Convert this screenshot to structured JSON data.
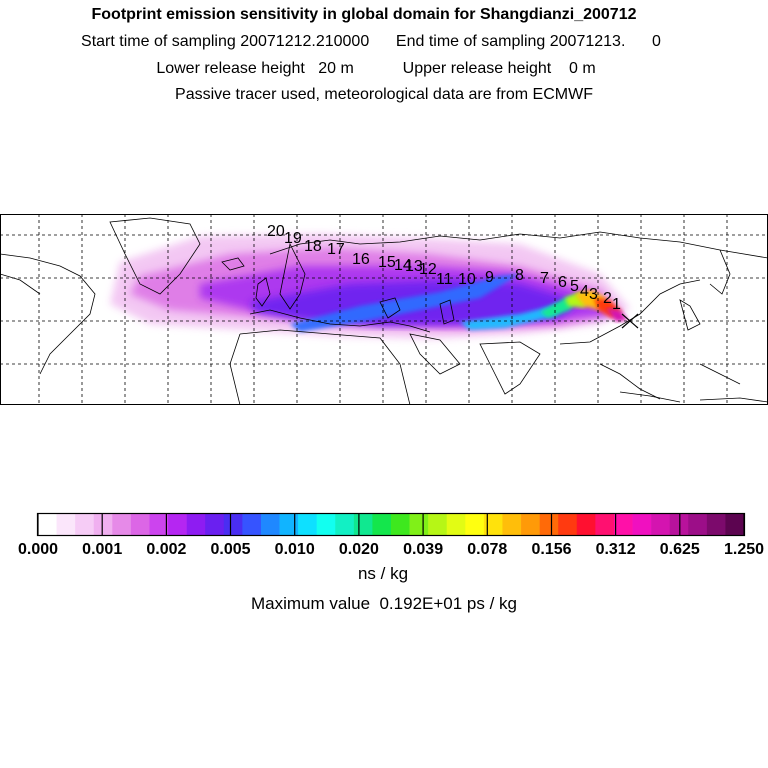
{
  "header": {
    "title": "Footprint emission sensitivity in global domain for Shangdianzi_200712",
    "line2": "Start time of sampling 20071212.210000      End time of sampling 20071213.      0",
    "line3": "Lower release height   20 m           Upper release height    0 m",
    "line4": "Passive tracer used, meteorological data are from ECMWF"
  },
  "map": {
    "receptor_marker": "x-cross-icon",
    "trajectory_labels": [
      "20",
      "19",
      "18",
      "17",
      "16",
      "15",
      "14",
      "13",
      "12",
      "11",
      "10",
      "9",
      "8",
      "7",
      "6",
      "5",
      "4",
      "3",
      "2",
      "1"
    ]
  },
  "colorbar": {
    "colors": [
      "#ffffff",
      "#fbe6fb",
      "#f6ccf6",
      "#f0b0f0",
      "#e68ae8",
      "#dc66e6",
      "#cc44ee",
      "#b526f2",
      "#8e1cf2",
      "#6a20f0",
      "#4a2ef2",
      "#3654ff",
      "#1f88ff",
      "#11b4ff",
      "#0ee0ff",
      "#12fff0",
      "#12f0c4",
      "#10e890",
      "#14e64c",
      "#3ee81e",
      "#80f018",
      "#b6f616",
      "#e2fc14",
      "#ffff10",
      "#ffe20c",
      "#ffbe0a",
      "#ff9a08",
      "#ff6a08",
      "#ff3a10",
      "#ff1030",
      "#ff1070",
      "#ff10a8",
      "#f010c0",
      "#d414b0",
      "#b8129c",
      "#9c0e88",
      "#7c0a6c",
      "#5c0450"
    ],
    "tick_labels": [
      "0.000",
      "0.001",
      "0.002",
      "0.005",
      "0.010",
      "0.020",
      "0.039",
      "0.078",
      "0.156",
      "0.312",
      "0.625",
      "1.250"
    ],
    "unit": "ns / kg",
    "maximum": "Maximum value  0.192E+01 ps / kg"
  }
}
